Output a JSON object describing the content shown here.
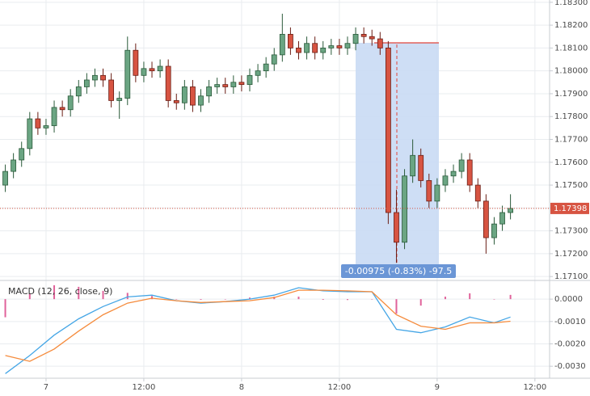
{
  "chart_data": [
    {
      "type": "candlestick",
      "x": [
        -5,
        -4,
        -3,
        -2,
        -1,
        0,
        1,
        2,
        3,
        4,
        5,
        6,
        7,
        8,
        9,
        10,
        11,
        12,
        13,
        14,
        15,
        16,
        17,
        18,
        19,
        20,
        21,
        22,
        23,
        24,
        25,
        26,
        27,
        28,
        29,
        30,
        31,
        32,
        33,
        34,
        35,
        36,
        37,
        38,
        39,
        40,
        41,
        42,
        43,
        44,
        45,
        46,
        47,
        48,
        49,
        50,
        51,
        52,
        53,
        54,
        55,
        56,
        57
      ],
      "open": [
        1.175,
        1.1756,
        1.1761,
        1.1766,
        1.1779,
        1.1775,
        1.1776,
        1.1784,
        1.1783,
        1.1789,
        1.1793,
        1.1796,
        1.1798,
        1.1796,
        1.1787,
        1.1788,
        1.1809,
        1.1798,
        1.1801,
        1.18,
        1.1802,
        1.1787,
        1.1786,
        1.1793,
        1.1785,
        1.1789,
        1.1793,
        1.1794,
        1.1793,
        1.1795,
        1.1794,
        1.1798,
        1.18,
        1.1803,
        1.1807,
        1.1816,
        1.181,
        1.1808,
        1.1812,
        1.1808,
        1.181,
        1.1811,
        1.181,
        1.1812,
        1.1816,
        1.1815,
        1.1814,
        1.181,
        1.1738,
        1.1725,
        1.1754,
        1.1763,
        1.1752,
        1.1743,
        1.175,
        1.1754,
        1.1756,
        1.1761,
        1.175,
        1.1743,
        1.1727,
        1.1733,
        1.1738
      ],
      "high": [
        1.1759,
        1.1764,
        1.1769,
        1.1782,
        1.1782,
        1.1779,
        1.1787,
        1.1787,
        1.1792,
        1.1796,
        1.1799,
        1.1801,
        1.1801,
        1.1799,
        1.1791,
        1.1815,
        1.1812,
        1.1804,
        1.1804,
        1.1805,
        1.1805,
        1.179,
        1.1796,
        1.1796,
        1.1792,
        1.1796,
        1.1797,
        1.1797,
        1.1798,
        1.1798,
        1.1801,
        1.1803,
        1.1806,
        1.181,
        1.1825,
        1.1819,
        1.1813,
        1.1815,
        1.1815,
        1.1813,
        1.1814,
        1.1814,
        1.1815,
        1.1819,
        1.1819,
        1.1818,
        1.1817,
        1.1813,
        1.1748,
        1.1757,
        1.177,
        1.1766,
        1.1755,
        1.1753,
        1.1757,
        1.1759,
        1.1764,
        1.1764,
        1.1753,
        1.1746,
        1.1736,
        1.1741,
        1.1746
      ],
      "low": [
        1.1747,
        1.1753,
        1.1758,
        1.1763,
        1.1772,
        1.1772,
        1.1773,
        1.178,
        1.178,
        1.1786,
        1.179,
        1.1793,
        1.1793,
        1.1784,
        1.1779,
        1.1785,
        1.1795,
        1.1795,
        1.1797,
        1.1797,
        1.1784,
        1.1783,
        1.1783,
        1.1782,
        1.1782,
        1.1786,
        1.179,
        1.179,
        1.179,
        1.1791,
        1.1791,
        1.1795,
        1.1797,
        1.18,
        1.1804,
        1.1807,
        1.1805,
        1.1805,
        1.1805,
        1.1805,
        1.1807,
        1.1807,
        1.1807,
        1.1809,
        1.1812,
        1.1811,
        1.1807,
        1.1733,
        1.1716,
        1.1722,
        1.1751,
        1.1749,
        1.174,
        1.174,
        1.1747,
        1.1751,
        1.1753,
        1.1747,
        1.174,
        1.172,
        1.1724,
        1.173,
        1.1735
      ],
      "close": [
        1.1756,
        1.1761,
        1.1766,
        1.1779,
        1.1775,
        1.1776,
        1.1784,
        1.1783,
        1.1789,
        1.1793,
        1.1796,
        1.1798,
        1.1796,
        1.1787,
        1.1788,
        1.1809,
        1.1798,
        1.1801,
        1.18,
        1.1802,
        1.1787,
        1.1786,
        1.1793,
        1.1785,
        1.1789,
        1.1793,
        1.1794,
        1.1793,
        1.1795,
        1.1794,
        1.1798,
        1.18,
        1.1803,
        1.1807,
        1.1816,
        1.181,
        1.1808,
        1.1812,
        1.1808,
        1.181,
        1.1811,
        1.181,
        1.1812,
        1.1816,
        1.1815,
        1.1814,
        1.181,
        1.1738,
        1.1725,
        1.1754,
        1.1763,
        1.1752,
        1.1743,
        1.175,
        1.1754,
        1.1756,
        1.1761,
        1.175,
        1.1743,
        1.1727,
        1.1733,
        1.1738,
        1.17398
      ],
      "up_color": "#6ba583",
      "down_color": "#d75442",
      "xlim": [
        -5.65,
        61.8
      ],
      "xticks": [
        {
          "value": 0,
          "label": "7"
        },
        {
          "value": 12,
          "label": "12:00"
        },
        {
          "value": 24,
          "label": "8"
        },
        {
          "value": 36,
          "label": "12:00"
        },
        {
          "value": 48,
          "label": "9"
        },
        {
          "value": 60,
          "label": "12:00"
        }
      ],
      "ylim": [
        1.1709,
        1.1831
      ],
      "yticks": [
        {
          "value": 1.171,
          "label": "1.17100"
        },
        {
          "value": 1.172,
          "label": "1.17200"
        },
        {
          "value": 1.173,
          "label": "1.17300"
        },
        {
          "value": 1.174,
          "label": "1.17400"
        },
        {
          "value": 1.175,
          "label": "1.17500"
        },
        {
          "value": 1.176,
          "label": "1.17600"
        },
        {
          "value": 1.177,
          "label": "1.17700"
        },
        {
          "value": 1.178,
          "label": "1.17800"
        },
        {
          "value": 1.179,
          "label": "1.17900"
        },
        {
          "value": 1.18,
          "label": "1.18000"
        },
        {
          "value": 1.181,
          "label": "1.18100"
        },
        {
          "value": 1.182,
          "label": "1.18200"
        },
        {
          "value": 1.183,
          "label": "1.18300"
        }
      ],
      "grid": true,
      "last_price": 1.17398,
      "measure_label": "-0.00975 (-0.83%) -97.5"
    },
    {
      "type": "macd",
      "title": "MACD (12, 26, close, 9)",
      "x": [
        -5,
        -2,
        1,
        4,
        7,
        10,
        13,
        16,
        19,
        22,
        25,
        28,
        31,
        34,
        37,
        40,
        43,
        46,
        49,
        52,
        55,
        57
      ],
      "series": [
        {
          "color": "#45a6e6",
          "values": [
            -0.00333,
            -0.00252,
            -0.00161,
            -0.00088,
            -0.00033,
            0.0001,
            0.00018,
            -7e-05,
            -0.00018,
            -0.00011,
            0,
            0.00018,
            0.00051,
            0.00037,
            0.00033,
            0.00033,
            -0.00135,
            -0.0015,
            -0.00124,
            -0.0008,
            -0.00106,
            -0.0008
          ]
        },
        {
          "color": "#f58b3c",
          "values": [
            -0.00252,
            -0.00278,
            -0.00223,
            -0.00143,
            -0.0007,
            -0.00018,
            4e-05,
            -7e-05,
            -0.00015,
            -0.00011,
            -7e-05,
            7e-05,
            0.0004,
            0.0004,
            0.00037,
            0.00033,
            -0.0007,
            -0.00121,
            -0.00135,
            -0.00106,
            -0.00106,
            -0.00099
          ]
        }
      ],
      "histogram": {
        "color": "#e0629a",
        "values": [
          -0.00081,
          0.00026,
          0.00062,
          0.00055,
          0.00037,
          0.00028,
          0.00014,
          0,
          -3e-05,
          0,
          7e-05,
          0.00011,
          0.00011,
          -3e-05,
          -4e-05,
          0,
          -0.00065,
          -0.00029,
          0.00011,
          0.00026,
          0,
          0.00019
        ]
      },
      "xlim": [
        -5.65,
        61.8
      ],
      "ylim": [
        -0.0035,
        0.0008
      ],
      "yticks": [
        {
          "value": 0,
          "label": "0.0000"
        },
        {
          "value": -0.001,
          "label": "-0.0010"
        },
        {
          "value": -0.002,
          "label": "-0.0020"
        },
        {
          "value": -0.003,
          "label": "-0.0030"
        }
      ],
      "grid": true
    }
  ]
}
